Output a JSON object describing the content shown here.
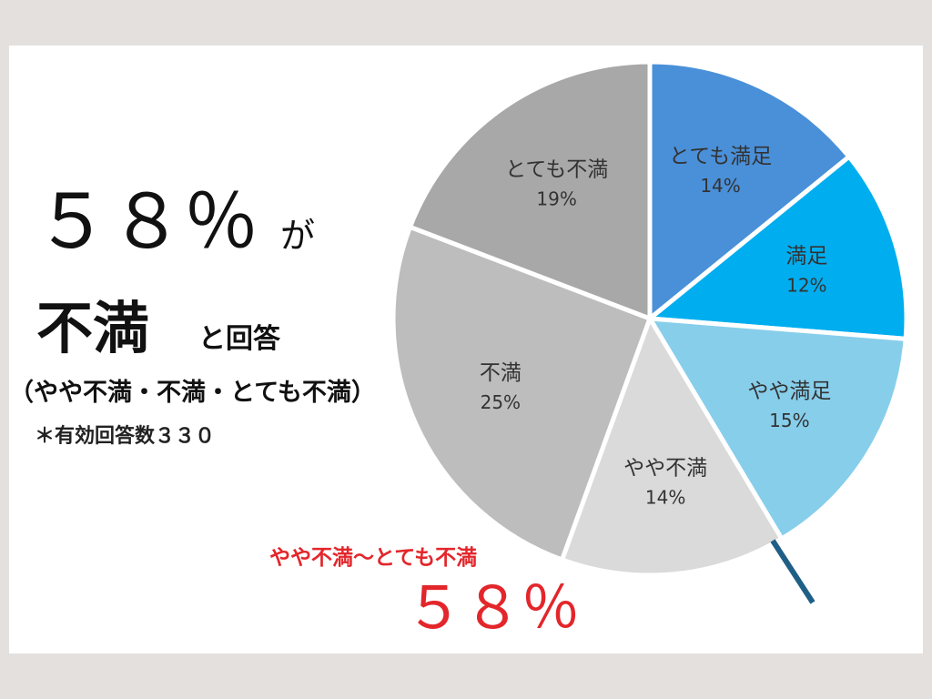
{
  "chart_data": {
    "type": "pie",
    "categories": [
      "とても満足",
      "満足",
      "やや満足",
      "やや不満",
      "不満",
      "とても不満"
    ],
    "values": [
      14,
      12,
      15,
      14,
      25,
      19
    ],
    "value_labels": [
      "14%",
      "12%",
      "15%",
      "14%",
      "25%",
      "19%"
    ],
    "colors": [
      "#4a90d9",
      "#00aeef",
      "#87ceeb",
      "#dadada",
      "#bdbdbd",
      "#a8a8a8"
    ],
    "annotations": [
      "５８％",
      "が",
      "不満",
      "と回答",
      "（やや不満・不満・とても不満）",
      "＊有効回答数３３０",
      "やや不満〜とても不満",
      "５８％"
    ]
  }
}
